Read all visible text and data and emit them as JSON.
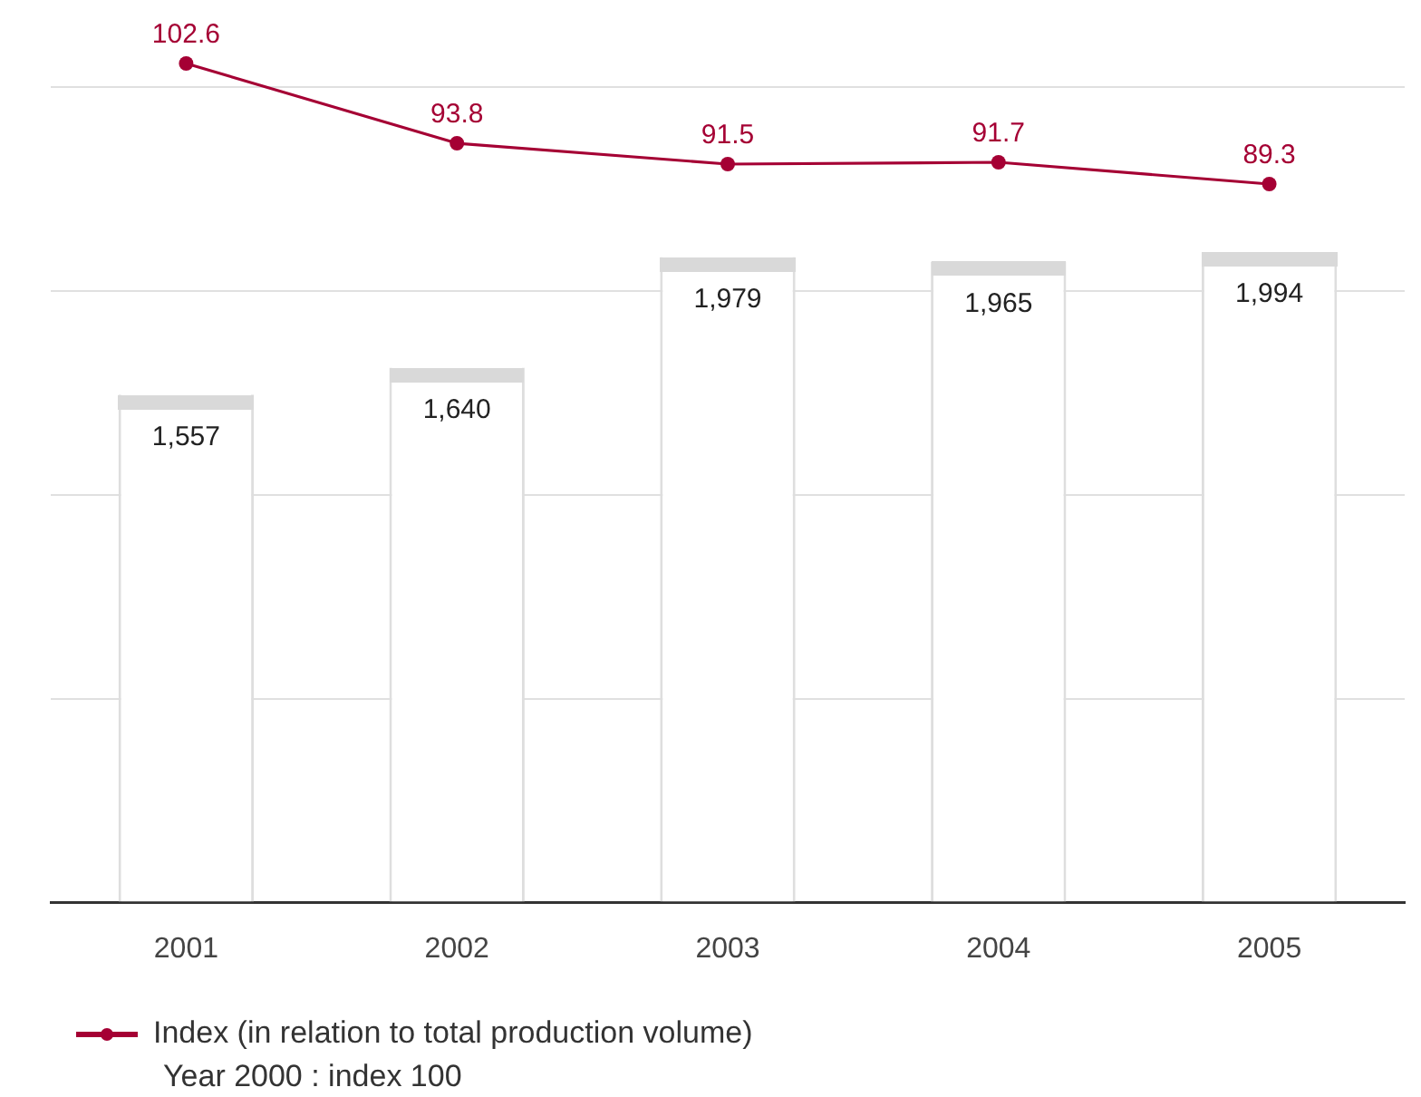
{
  "chart_data": [
    {
      "type": "bar",
      "categories": [
        "2001",
        "2002",
        "2003",
        "2004",
        "2005"
      ],
      "series": [
        {
          "color": "#ffffff",
          "values": [
            1557,
            1640,
            1979,
            1965,
            1994
          ],
          "value_labels": [
            "1,557",
            "1,640",
            "1,979",
            "1,965",
            "1,994"
          ]
        }
      ],
      "grid": "y",
      "tick_labels": "x"
    },
    {
      "type": "line",
      "categories": [
        "2001",
        "2002",
        "2003",
        "2004",
        "2005"
      ],
      "series": [
        {
          "name": "Index (in relation to total production volume)",
          "color": "#a50034",
          "values": [
            102.6,
            93.8,
            91.5,
            91.7,
            89.3
          ],
          "value_labels": [
            "102.6",
            "93.8",
            "91.5",
            "91.7",
            "89.3"
          ]
        }
      ],
      "legend": "bottom left",
      "tick_labels": false,
      "marker": "circle",
      "annotations": [
        "Year 2000 : index 100"
      ]
    }
  ]
}
